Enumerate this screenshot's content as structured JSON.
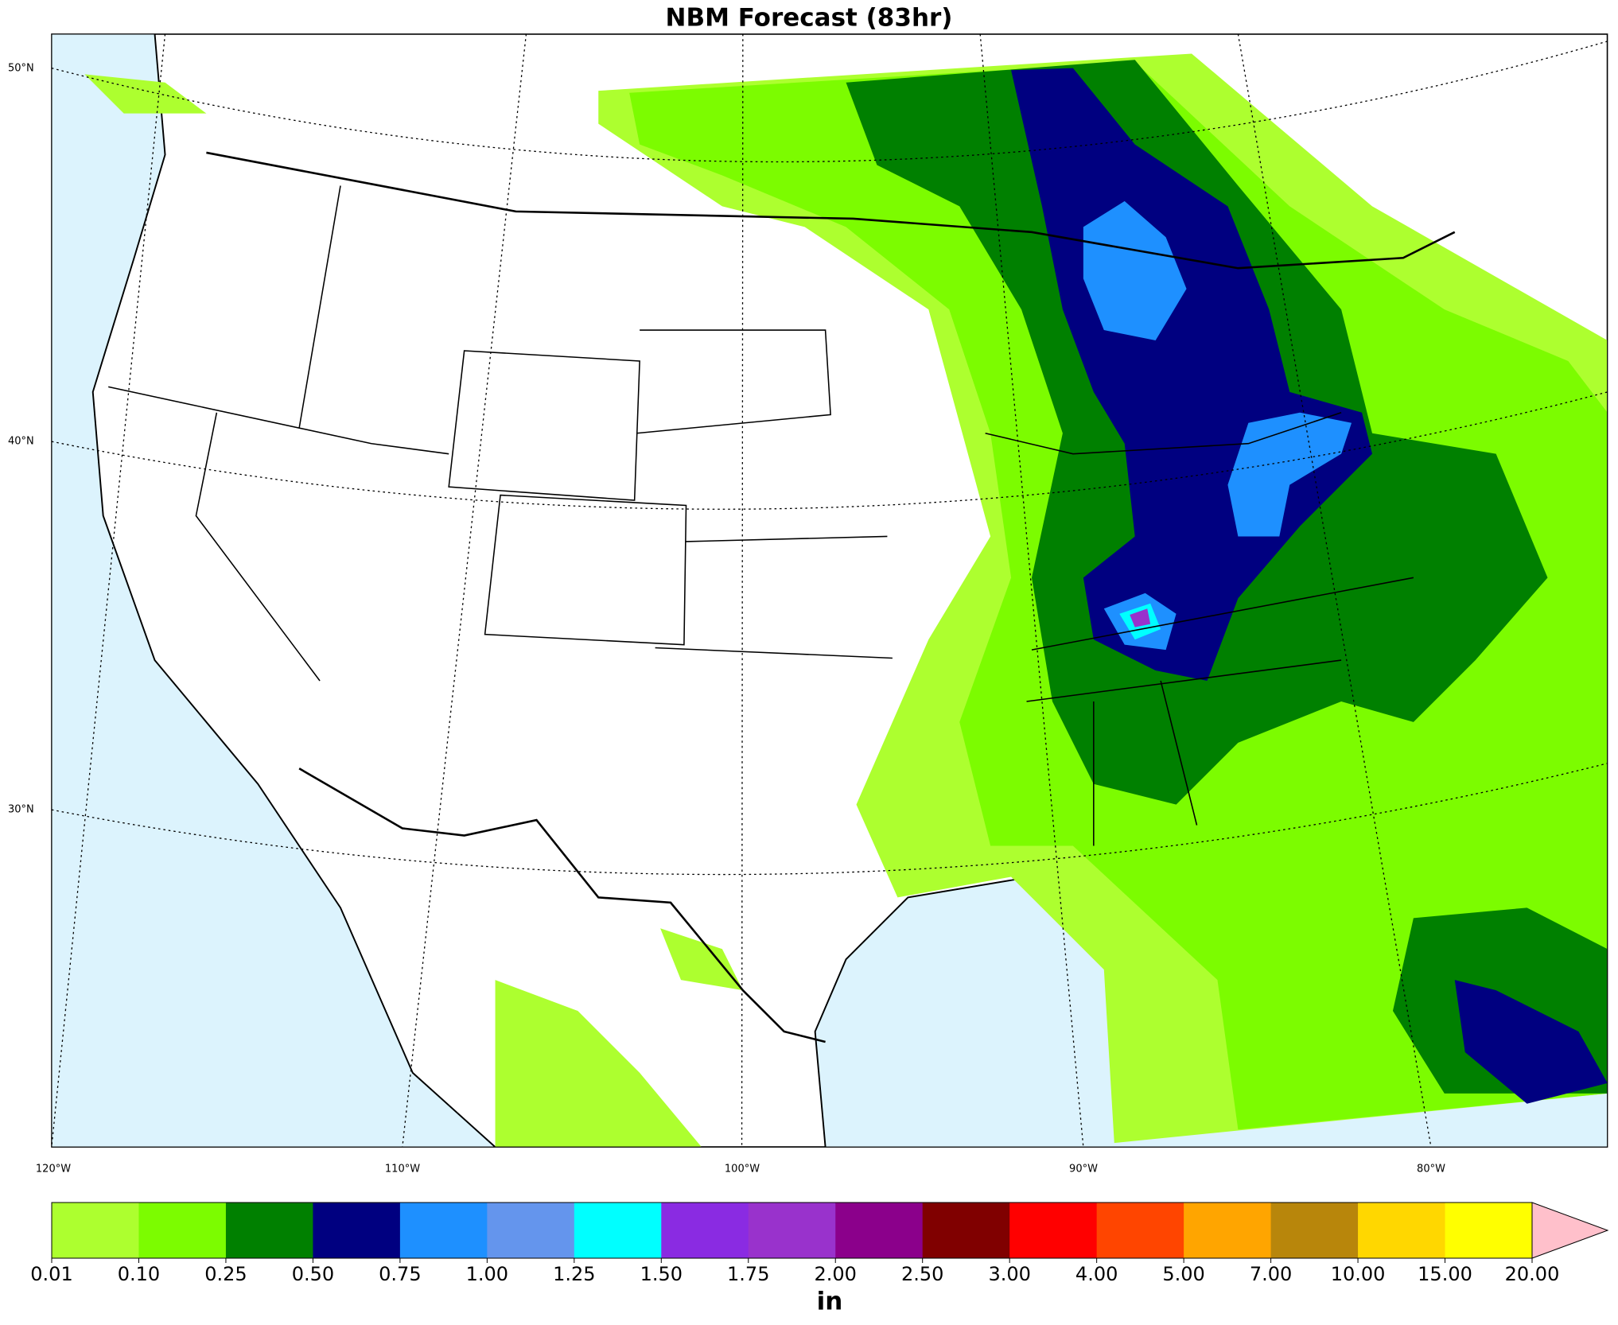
{
  "title": "NBM Forecast (83hr)",
  "lat_labels": [
    "50°N",
    "40°N",
    "30°N"
  ],
  "lon_labels": [
    "120°W",
    "110°W",
    "100°W",
    "90°W",
    "80°W"
  ],
  "colorbar": {
    "labels": [
      "0.01",
      "0.10",
      "0.25",
      "0.50",
      "0.75",
      "1.00",
      "1.25",
      "1.50",
      "1.75",
      "2.00",
      "2.50",
      "3.00",
      "4.00",
      "5.00",
      "7.00",
      "10.00",
      "15.00",
      "20.00"
    ],
    "colors": [
      "#adff2f",
      "#7cfc00",
      "#008000",
      "#000080",
      "#1e90ff",
      "#6495ed",
      "#00ffff",
      "#8a2be2",
      "#9932cc",
      "#8b008b",
      "#800000",
      "#ff0000",
      "#ff4500",
      "#ffa500",
      "#b8860b",
      "#ffd700",
      "#ffff00"
    ],
    "extend_color": "#ffc0cb",
    "unit": "in"
  }
}
